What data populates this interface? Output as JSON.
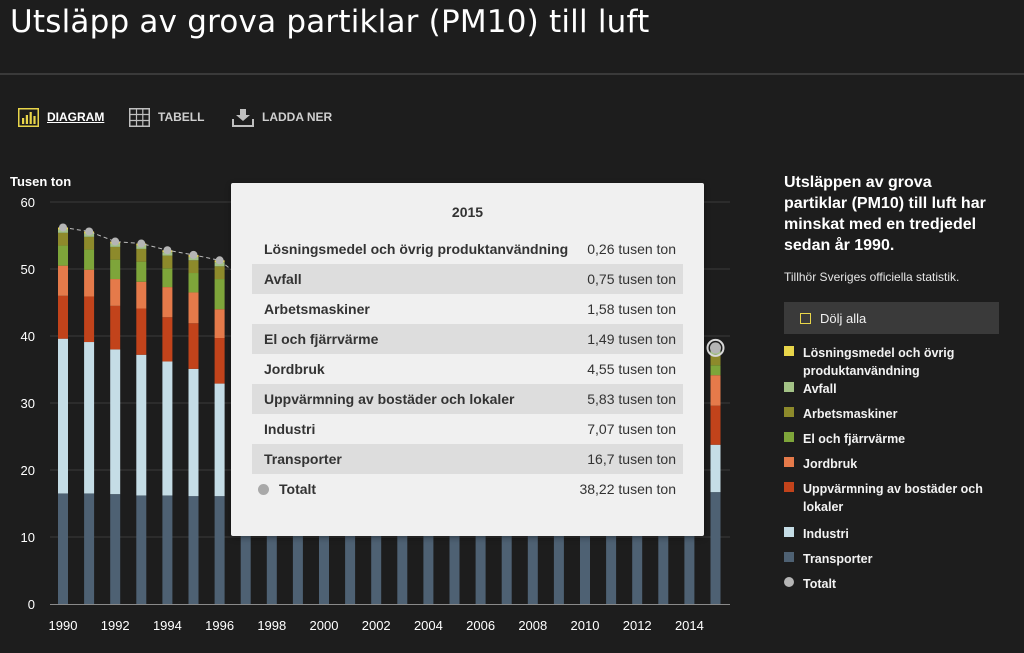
{
  "title": "Utsläpp av grova partiklar (PM10) till luft",
  "toolbar": {
    "diagram": "DIAGRAM",
    "table": "TABELL",
    "download": "LADDA NER",
    "accent_color": "#e8d54a"
  },
  "sidebar": {
    "summary": "Utsläppen av grova partiklar (PM10) till luft har minskat med en tredjedel sedan år 1990.",
    "official": "Tillhör Sveriges officiella statistik.",
    "hide_all": "Dölj alla"
  },
  "legend": [
    {
      "label": "Lösningsmedel och övrig produktanvändning",
      "color": "#e8d54a"
    },
    {
      "label": "Avfall",
      "color": "#a3c286"
    },
    {
      "label": "Arbetsmaskiner",
      "color": "#8d8a2b"
    },
    {
      "label": "El och fjärrvärme",
      "color": "#7ea53a"
    },
    {
      "label": "Jordbruk",
      "color": "#e57a4a"
    },
    {
      "label": "Uppvärmning av bostäder och lokaler",
      "color": "#c2431b"
    },
    {
      "label": "Industri",
      "color": "#c5dde6"
    },
    {
      "label": "Transporter",
      "color": "#4e6173"
    },
    {
      "label": "Totalt",
      "color": "#b5b5b5"
    }
  ],
  "tooltip": {
    "year": "2015",
    "rows": [
      {
        "name": "Lösningsmedel och övrig produktanvändning",
        "value": "0,26 tusen ton"
      },
      {
        "name": "Avfall",
        "value": "0,75 tusen ton"
      },
      {
        "name": "Arbetsmaskiner",
        "value": "1,58 tusen ton"
      },
      {
        "name": "El och fjärrvärme",
        "value": "1,49 tusen ton"
      },
      {
        "name": "Jordbruk",
        "value": "4,55 tusen ton"
      },
      {
        "name": "Uppvärmning av bostäder och lokaler",
        "value": "5,83 tusen ton"
      },
      {
        "name": "Industri",
        "value": "7,07 tusen ton"
      },
      {
        "name": "Transporter",
        "value": "16,7 tusen ton"
      }
    ],
    "total": {
      "name": "Totalt",
      "value": "38,22 tusen ton"
    }
  },
  "chart_data": {
    "type": "bar",
    "stacked": true,
    "title": "",
    "ylabel": "Tusen ton",
    "xlabel": "",
    "ylim": [
      0,
      60
    ],
    "yticks": [
      0,
      10,
      20,
      30,
      40,
      50,
      60
    ],
    "xtick_labels": [
      "1990",
      "1992",
      "1994",
      "1996",
      "1998",
      "2000",
      "2002",
      "2004",
      "2006",
      "2008",
      "2010",
      "2012",
      "2014"
    ],
    "categories": [
      "1990",
      "1991",
      "1992",
      "1993",
      "1994",
      "1995",
      "1996",
      "1997",
      "1998",
      "1999",
      "2000",
      "2001",
      "2002",
      "2003",
      "2004",
      "2005",
      "2006",
      "2007",
      "2008",
      "2009",
      "2010",
      "2011",
      "2012",
      "2013",
      "2014",
      "2015"
    ],
    "visible_until_index": 6,
    "highlight_index": 25,
    "series": [
      {
        "name": "Transporter",
        "color": "#4e6173",
        "values": [
          16.5,
          16.5,
          16.4,
          16.2,
          16.2,
          16.1,
          16.1,
          16.1,
          16.2,
          16.2,
          16.3,
          16.3,
          16.4,
          16.4,
          16.5,
          16.5,
          16.5,
          16.6,
          16.6,
          16.5,
          16.6,
          16.6,
          16.6,
          16.7,
          16.7,
          16.7
        ]
      },
      {
        "name": "Industri",
        "color": "#c5dde6",
        "values": [
          23.1,
          22.6,
          21.6,
          21.0,
          20.0,
          19.0,
          16.8,
          16.0,
          15.3,
          14.6,
          14.0,
          13.4,
          12.8,
          12.2,
          11.7,
          11.2,
          10.7,
          10.2,
          9.8,
          9.0,
          8.8,
          8.4,
          8.0,
          7.6,
          7.3,
          7.07
        ]
      },
      {
        "name": "Uppvärmning av bostäder och lokaler",
        "color": "#c2431b",
        "values": [
          6.4,
          6.8,
          6.5,
          6.9,
          6.6,
          6.8,
          6.8,
          6.6,
          6.7,
          6.5,
          6.4,
          6.5,
          6.4,
          6.3,
          6.2,
          6.2,
          6.1,
          6.0,
          6.0,
          6.0,
          6.1,
          5.9,
          5.9,
          5.9,
          5.8,
          5.83
        ]
      },
      {
        "name": "Jordbruk",
        "color": "#e57a4a",
        "values": [
          4.5,
          4.0,
          4.0,
          4.0,
          4.5,
          4.6,
          4.3,
          4.4,
          4.4,
          4.4,
          4.4,
          4.4,
          4.4,
          4.5,
          4.5,
          4.5,
          4.5,
          4.5,
          4.5,
          4.5,
          4.6,
          4.5,
          4.5,
          4.6,
          4.6,
          4.55
        ]
      },
      {
        "name": "El och fjärrvärme",
        "color": "#7ea53a",
        "values": [
          3.0,
          3.0,
          2.9,
          3.0,
          2.8,
          2.9,
          4.5,
          2.3,
          2.2,
          2.2,
          2.0,
          2.0,
          1.9,
          1.9,
          1.8,
          1.8,
          1.7,
          1.7,
          1.7,
          1.6,
          1.7,
          1.6,
          1.5,
          1.5,
          1.5,
          1.49
        ]
      },
      {
        "name": "Arbetsmaskiner",
        "color": "#8d8a2b",
        "values": [
          1.9,
          1.9,
          1.9,
          1.9,
          1.9,
          1.9,
          1.9,
          1.9,
          1.9,
          1.9,
          1.8,
          1.8,
          1.8,
          1.8,
          1.8,
          1.8,
          1.7,
          1.7,
          1.7,
          1.7,
          1.7,
          1.7,
          1.6,
          1.6,
          1.6,
          1.58
        ]
      },
      {
        "name": "Avfall",
        "color": "#a3c286",
        "values": [
          0.5,
          0.5,
          0.5,
          0.5,
          0.5,
          0.5,
          0.6,
          0.6,
          0.6,
          0.6,
          0.6,
          0.6,
          0.6,
          0.6,
          0.6,
          0.7,
          0.7,
          0.7,
          0.7,
          0.7,
          0.7,
          0.7,
          0.7,
          0.7,
          0.7,
          0.75
        ]
      },
      {
        "name": "Lösningsmedel och övrig produktanvändning",
        "color": "#e8d54a",
        "values": [
          0.3,
          0.3,
          0.3,
          0.3,
          0.3,
          0.3,
          0.3,
          0.3,
          0.3,
          0.3,
          0.3,
          0.3,
          0.3,
          0.3,
          0.3,
          0.3,
          0.3,
          0.3,
          0.3,
          0.3,
          0.3,
          0.3,
          0.3,
          0.3,
          0.3,
          0.26
        ]
      }
    ],
    "total": {
      "name": "Totalt",
      "color": "#b5b5b5",
      "values": [
        56.2,
        55.6,
        54.1,
        53.8,
        52.8,
        52.1,
        51.3,
        48.2,
        47.6,
        46.7,
        45.8,
        45.1,
        44.6,
        44.0,
        43.4,
        43.0,
        42.2,
        41.6,
        41.2,
        40.3,
        40.5,
        39.9,
        39.1,
        38.9,
        38.5,
        38.22
      ]
    },
    "legend_position": "right",
    "grid": true
  }
}
